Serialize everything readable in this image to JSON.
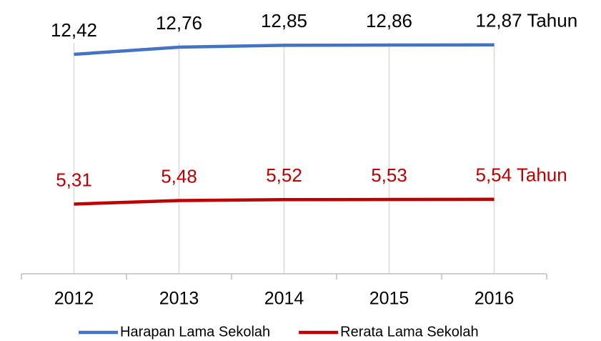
{
  "chart_data": {
    "type": "line",
    "categories": [
      "2012",
      "2013",
      "2014",
      "2015",
      "2016"
    ],
    "series": [
      {
        "name": "Harapan Lama Sekolah",
        "color": "#4472c4",
        "label_color": "#000000",
        "values": [
          12.42,
          12.76,
          12.85,
          12.86,
          12.87
        ],
        "value_labels": [
          "12,42",
          "12,76",
          "12,85",
          "12,86",
          "12,87 Tahun"
        ]
      },
      {
        "name": "Rerata Lama Sekolah",
        "color": "#c00000",
        "label_color": "#c00000",
        "values": [
          5.31,
          5.48,
          5.52,
          5.53,
          5.54
        ],
        "value_labels": [
          "5,31",
          "5,48",
          "5,52",
          "5,53",
          "5,54 Tahun"
        ]
      }
    ],
    "ylim": [
      2,
      15
    ],
    "grid": "x",
    "legend": "bottom"
  }
}
